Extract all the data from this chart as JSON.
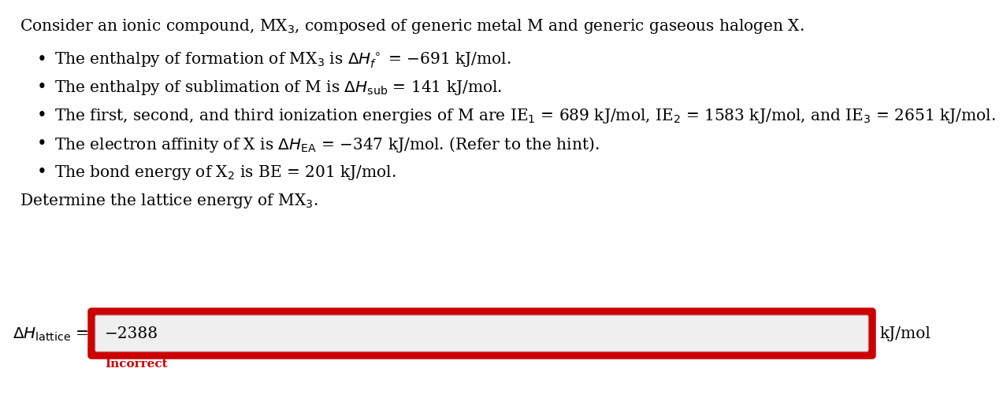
{
  "bg_color": "#ffffff",
  "text_color": "#000000",
  "title_line": "Consider an ionic compound, MX$_3$, composed of generic metal M and generic gaseous halogen X.",
  "bullet1": "The enthalpy of formation of MX$_3$ is $\\Delta H_f^\\circ$ = −691 kJ/mol.",
  "bullet2": "The enthalpy of sublimation of M is $\\Delta H_{\\mathrm{sub}}$ = 141 kJ/mol.",
  "bullet3": "The first, second, and third ionization energies of M are IE$_1$ = 689 kJ/mol, IE$_2$ = 1583 kJ/mol, and IE$_3$ = 2651 kJ/mol.",
  "bullet4": "The electron affinity of X is $\\Delta H_{\\mathrm{EA}}$ = −347 kJ/mol. (Refer to the hint).",
  "bullet5": "The bond energy of X$_2$ is BE = 201 kJ/mol.",
  "determine_line": "Determine the lattice energy of MX$_3$.",
  "label_left": "$\\Delta H_{\\mathrm{lattice}}$ =",
  "answer_value": "−2388",
  "label_right": "kJ/mol",
  "incorrect_text": "Incorrect",
  "incorrect_color": "#cc0000",
  "input_bg": "#efefef",
  "input_border_color": "#cc0000",
  "font_size_main": 14.5,
  "font_size_answer": 14.5,
  "font_size_incorrect": 11
}
